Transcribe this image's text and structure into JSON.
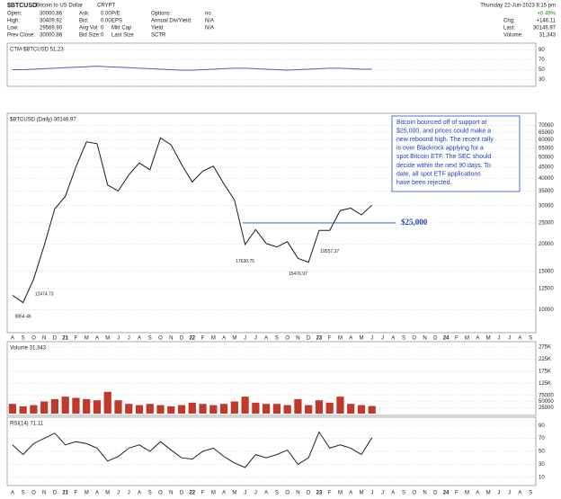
{
  "header": {
    "symbol": "$BTCUSD",
    "name": "Bitcoin to US Dollar",
    "exchange": "CRYPT",
    "date": "Thursday 22-Jun-2023 8:15 pm",
    "change_pct": "+0.49%",
    "col1": [
      {
        "label": "Open:",
        "value": "30000.86"
      },
      {
        "label": "High:",
        "value": "30409.92"
      },
      {
        "label": "Low:",
        "value": "29569.90"
      },
      {
        "label": "Prev Close:",
        "value": "30000.86"
      }
    ],
    "col2": [
      {
        "label": "Ask:",
        "value": "0.00"
      },
      {
        "label": "Bid:",
        "value": "0.00"
      },
      {
        "label": "Avg Vol:",
        "value": "0"
      },
      {
        "label": "Bid Size:",
        "value": "0"
      }
    ],
    "col3": [
      "P/E",
      "EPS",
      "Mkt Cap",
      "Last Size"
    ],
    "col4": [
      {
        "label": "Options:",
        "value": "no"
      },
      {
        "label": "Annual Div/Yield:",
        "value": "N/A"
      },
      {
        "label": "Yield:",
        "value": "N/A"
      },
      {
        "label": "SCTR"
      }
    ],
    "right": [
      {
        "label": "Chg:",
        "value": "+146.11"
      },
      {
        "label": "Last:",
        "value": "30146.97"
      },
      {
        "label": "Volume:",
        "value": "31,343"
      }
    ]
  },
  "chart_data": [
    {
      "type": "line",
      "title": "CTM-$BTCUSD 51.23",
      "series": [
        {
          "name": "CTM",
          "color": "#6a4fb0",
          "values": [
            50,
            50,
            51,
            52,
            53,
            54,
            55,
            56,
            57,
            56,
            55,
            54,
            53,
            52,
            51,
            50,
            49,
            49,
            50,
            51,
            52,
            53,
            53,
            52,
            51,
            50,
            49,
            50,
            51,
            52,
            53,
            53,
            52,
            51,
            51.23,
            null,
            null,
            null,
            null,
            null,
            null,
            null,
            null,
            null,
            null,
            null,
            null,
            null,
            null,
            null
          ]
        }
      ],
      "ylim": [
        20,
        100
      ],
      "yticks": [
        90,
        70,
        50,
        30
      ],
      "grid": true
    },
    {
      "type": "line",
      "title": "$BTCUSD (Daily) 30146.97",
      "log_scale": true,
      "categories": [
        "A",
        "S",
        "O",
        "N",
        "D",
        "21",
        "F",
        "M",
        "A",
        "M",
        "J",
        "J",
        "A",
        "S",
        "O",
        "N",
        "D",
        "22",
        "F",
        "M",
        "A",
        "M",
        "J",
        "J",
        "A",
        "S",
        "O",
        "N",
        "D",
        "23",
        "F",
        "M",
        "A",
        "M",
        "J",
        "J",
        "A",
        "S",
        "O",
        "N",
        "D",
        "24",
        "F",
        "M",
        "A",
        "M",
        "J",
        "J",
        "A",
        "S"
      ],
      "series": [
        {
          "name": "$BTCUSD",
          "color": "#1a1a1a",
          "values": [
            11650,
            10780,
            13800,
            19700,
            29000,
            33100,
            45200,
            58800,
            57700,
            37300,
            35000,
            41500,
            47100,
            43800,
            61300,
            57000,
            46300,
            38500,
            43200,
            45500,
            37700,
            31800,
            19900,
            23300,
            20100,
            19400,
            20500,
            17200,
            16500,
            23100,
            23100,
            28500,
            29200,
            27200,
            30146.97,
            null,
            null,
            null,
            null,
            null,
            null,
            null,
            null,
            null,
            null,
            null,
            null,
            null,
            null,
            null
          ]
        }
      ],
      "ylim": [
        8000,
        78000
      ],
      "yticks": [
        70000,
        65000,
        60000,
        55000,
        50000,
        45000,
        40000,
        35000,
        30000,
        25000,
        20000,
        15000,
        12500,
        10000
      ],
      "grid": true,
      "hline": {
        "value": 25000,
        "label": "$25,000",
        "color": "#1f3fbf"
      },
      "point_labels": [
        {
          "text": "9854.46",
          "x": 1,
          "y": 9854.46
        },
        {
          "text": "12474.73",
          "x": 3,
          "y": 12474.73
        },
        {
          "text": "17630.75",
          "x": 22,
          "y": 17630.75
        },
        {
          "text": "15476.97",
          "x": 27,
          "y": 15476.97
        },
        {
          "text": "19557.37",
          "x": 30,
          "y": 19557.37
        }
      ],
      "annotation": [
        "Bitcoin bounced off of support at",
        "$25,000, and prices could make a",
        "new rebound high. The recent rally",
        "is over Blackrock applying for a",
        "spot Bitcoin ETF. The SEC should",
        "decide within the next 90 days. To",
        "date, all spot ETF applications",
        "have been rejected."
      ]
    },
    {
      "type": "bar",
      "title": "Volume 31,343",
      "series": [
        {
          "name": "Volume",
          "color": "#c0392b",
          "values": [
            40000,
            30000,
            35000,
            50000,
            60000,
            70000,
            65000,
            60000,
            55000,
            90000,
            55000,
            40000,
            35000,
            40000,
            35000,
            30000,
            35000,
            45000,
            40000,
            35000,
            40000,
            50000,
            70000,
            45000,
            40000,
            40000,
            35000,
            60000,
            35000,
            55000,
            45000,
            70000,
            40000,
            35000,
            31343,
            null,
            null,
            null,
            null,
            null,
            null,
            null,
            null,
            null,
            null,
            null,
            null,
            null,
            null,
            null
          ]
        }
      ],
      "ylim": [
        0,
        290000
      ],
      "yticks": [
        {
          "value": 275000,
          "label": "275K"
        },
        {
          "value": 225000,
          "label": "225K"
        },
        {
          "value": 175000,
          "label": "175K"
        },
        {
          "value": 125000,
          "label": "125K"
        },
        75000,
        50000,
        25000
      ],
      "grid": true
    },
    {
      "type": "line",
      "title": "RSI(14) 71.11",
      "categories": [
        "A",
        "S",
        "O",
        "N",
        "D",
        "21",
        "F",
        "M",
        "A",
        "M",
        "J",
        "J",
        "A",
        "S",
        "O",
        "N",
        "D",
        "22",
        "F",
        "M",
        "A",
        "M",
        "J",
        "J",
        "A",
        "S",
        "O",
        "N",
        "D",
        "23",
        "F",
        "M",
        "A",
        "M",
        "J",
        "J",
        "A",
        "S",
        "O",
        "N",
        "D",
        "24",
        "F",
        "M",
        "A",
        "M",
        "J",
        "J",
        "A",
        "S"
      ],
      "series": [
        {
          "name": "RSI(14)",
          "color": "#222222",
          "values": [
            60,
            45,
            62,
            70,
            78,
            60,
            65,
            62,
            55,
            35,
            42,
            55,
            60,
            50,
            65,
            52,
            40,
            38,
            50,
            55,
            42,
            32,
            25,
            45,
            40,
            45,
            52,
            30,
            40,
            80,
            55,
            60,
            55,
            45,
            71.11,
            null,
            null,
            null,
            null,
            null,
            null,
            null,
            null,
            null,
            null,
            null,
            null,
            null,
            null,
            null
          ]
        }
      ],
      "ylim": [
        0,
        100
      ],
      "yticks": [
        90,
        70,
        50,
        30,
        10
      ],
      "grid": true
    }
  ]
}
